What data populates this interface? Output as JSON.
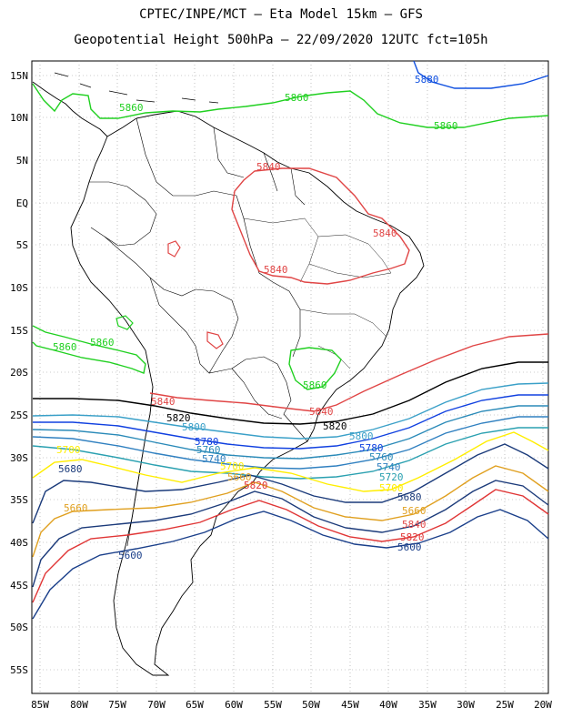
{
  "title_line1": "CPTEC/INPE/MCT –  Eta Model 15km – GFS",
  "title_line2": "Geopotential Height 500hPa – 22/09/2020 12UTC fct=105h",
  "lat_labels": [
    "15N",
    "10N",
    "5N",
    "EQ",
    "5S",
    "10S",
    "15S",
    "20S",
    "25S",
    "30S",
    "35S",
    "40S",
    "45S",
    "50S",
    "55S"
  ],
  "lon_labels": [
    "85W",
    "80W",
    "75W",
    "70W",
    "65W",
    "60W",
    "55W",
    "50W",
    "45W",
    "40W",
    "35W",
    "30W",
    "25W",
    "20W"
  ],
  "colors": {
    "c5560": "#1c2a8c",
    "c5580": "#d94040",
    "c5600": "#1a3f8a",
    "c5620": "#e03535",
    "c5640": "#1b3a7a",
    "c5660": "#e0a020",
    "c5680": "#1a3a7a",
    "c5700": "#ffee00",
    "c5720": "#2aa0b0",
    "c5740": "#3080c0",
    "c5760": "#2a8ab8",
    "c5780": "#1040e0",
    "c5800": "#3aa0c8",
    "c5820": "#000000",
    "c5840": "#e04545",
    "c5860": "#20d020",
    "c5880": "#1050e0"
  },
  "contour_labels": {
    "c5880": "5880",
    "c5860": "5860",
    "c5840": "5840",
    "c5820": "5820",
    "c5800": "5800",
    "c5780": "5780",
    "c5760": "5760",
    "c5740": "5740",
    "c5720": "5720",
    "c5700": "5700",
    "c5680": "5680",
    "c5660": "5660",
    "c5640": "5640",
    "c5620": "5620",
    "c5600": "5600"
  }
}
